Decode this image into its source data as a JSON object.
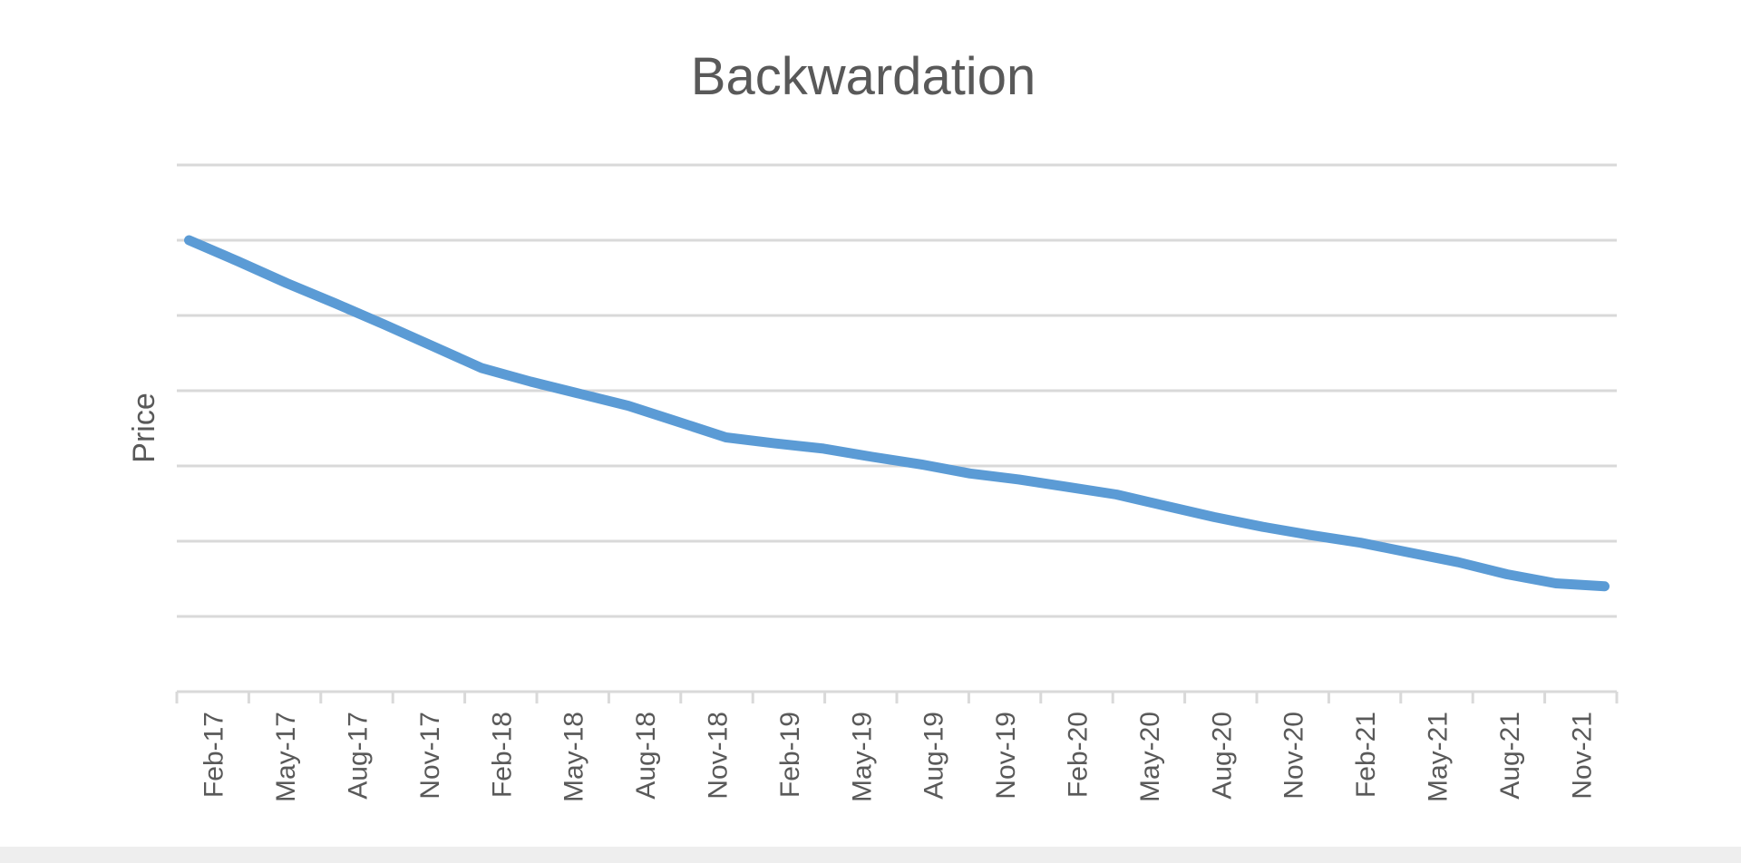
{
  "chart_data": {
    "type": "line",
    "title": "Backwardation",
    "xlabel": "",
    "ylabel": "Price",
    "categories": [
      "Feb-17",
      "May-17",
      "Aug-17",
      "Nov-17",
      "Feb-18",
      "May-18",
      "Aug-18",
      "Nov-18",
      "Feb-19",
      "May-19",
      "Aug-19",
      "Nov-19",
      "Feb-20",
      "May-20",
      "Aug-20",
      "Nov-20",
      "Feb-21",
      "May-21",
      "Aug-21",
      "Nov-21"
    ],
    "x": [
      "Feb-17",
      "Apr-17",
      "Jun-17",
      "Aug-17",
      "Oct-17",
      "Dec-17",
      "Feb-18",
      "Apr-18",
      "Jun-18",
      "Aug-18",
      "Oct-18",
      "Dec-18",
      "Feb-19",
      "Apr-19",
      "Jun-19",
      "Aug-19",
      "Oct-19",
      "Dec-19",
      "Feb-20",
      "Apr-20",
      "Jun-20",
      "Aug-20",
      "Oct-20",
      "Dec-20",
      "Feb-21",
      "Apr-21",
      "Jun-21",
      "Aug-21",
      "Oct-21",
      "Dec-21"
    ],
    "series": [
      {
        "values": [
          6.0,
          5.72,
          5.43,
          5.16,
          4.88,
          4.59,
          4.3,
          4.12,
          3.96,
          3.8,
          3.59,
          3.38,
          3.3,
          3.23,
          3.12,
          3.02,
          2.9,
          2.82,
          2.72,
          2.62,
          2.47,
          2.32,
          2.19,
          2.08,
          1.98,
          1.85,
          1.72,
          1.56,
          1.44,
          1.4
        ]
      }
    ],
    "ylim": [
      0,
      7
    ],
    "y_ticks_labeled": false,
    "grid": true,
    "legend": "none",
    "colors": {
      "line": "#5b9bd5",
      "grid": "#d9d9d9",
      "text": "#595959"
    }
  }
}
